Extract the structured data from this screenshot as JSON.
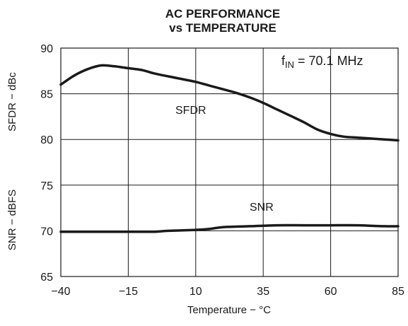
{
  "chart_data": {
    "type": "line",
    "title": "AC PERFORMANCE",
    "subtitle": "vs TEMPERATURE",
    "xlabel": "Temperature − °C",
    "ylabel_upper": "SFDR − dBc",
    "ylabel_lower": "SNR − dBFS",
    "xlim": [
      -40,
      85
    ],
    "ylim": [
      65,
      90
    ],
    "xticks": [
      -40,
      -15,
      10,
      35,
      60,
      85
    ],
    "yticks": [
      65,
      70,
      75,
      80,
      85,
      90
    ],
    "xtick_labels": [
      "−40",
      "−15",
      "10",
      "35",
      "60",
      "85"
    ],
    "ytick_labels": [
      "65",
      "70",
      "75",
      "80",
      "85",
      "90"
    ],
    "grid": true,
    "annotation": {
      "prefix": "f",
      "sub": "IN",
      "suffix": " = 70.1 MHz"
    },
    "series": [
      {
        "name": "SFDR",
        "x": [
          -40,
          -35,
          -30,
          -25,
          -20,
          -15,
          -10,
          -5,
          0,
          5,
          10,
          15,
          20,
          25,
          30,
          35,
          40,
          45,
          50,
          55,
          60,
          65,
          70,
          75,
          80,
          85
        ],
        "values": [
          86.0,
          87.0,
          87.7,
          88.1,
          88.0,
          87.8,
          87.6,
          87.2,
          86.9,
          86.6,
          86.3,
          85.9,
          85.5,
          85.1,
          84.6,
          84.0,
          83.3,
          82.6,
          81.9,
          81.1,
          80.6,
          80.3,
          80.2,
          80.1,
          80.0,
          79.9
        ]
      },
      {
        "name": "SNR",
        "x": [
          -40,
          -30,
          -20,
          -10,
          -5,
          0,
          10,
          15,
          20,
          30,
          40,
          50,
          60,
          70,
          80,
          85
        ],
        "values": [
          69.9,
          69.9,
          69.9,
          69.9,
          69.9,
          70.0,
          70.1,
          70.2,
          70.4,
          70.5,
          70.6,
          70.6,
          70.6,
          70.6,
          70.5,
          70.5
        ]
      }
    ]
  }
}
